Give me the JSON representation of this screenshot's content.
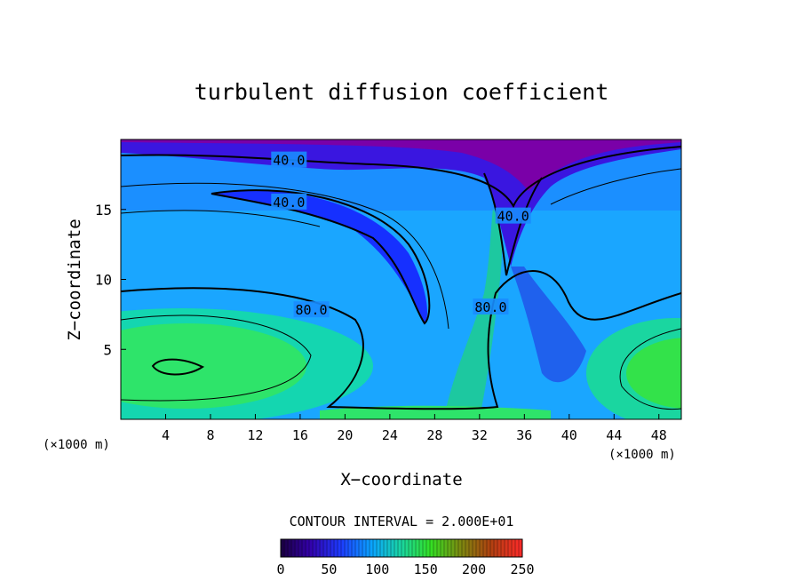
{
  "chart_data": {
    "type": "heatmap",
    "title": "turbulent diffusion coefficient",
    "xlabel": "X−coordinate",
    "ylabel": "Z−coordinate",
    "x_unit": "(×1000 m)",
    "z_unit": "(×1000 m)",
    "xlim": [
      0,
      50
    ],
    "ylim": [
      0,
      20
    ],
    "x_ticks": [
      "4",
      "8",
      "12",
      "16",
      "20",
      "24",
      "28",
      "32",
      "36",
      "40",
      "44",
      "48"
    ],
    "y_ticks": [
      "5",
      "10",
      "15"
    ],
    "contour_interval_text": "CONTOUR INTERVAL = 2.000E+01",
    "contour_labels": [
      {
        "text": "40.0",
        "x": 15,
        "z": 18.5
      },
      {
        "text": "40.0",
        "x": 15,
        "z": 15.5
      },
      {
        "text": "40.0",
        "x": 35,
        "z": 14.5
      },
      {
        "text": "80.0",
        "x": 17,
        "z": 7.8
      },
      {
        "text": "80.0",
        "x": 33,
        "z": 8.0
      }
    ],
    "colorbar": {
      "range": [
        0,
        250
      ],
      "ticks": [
        "0",
        "50",
        "100",
        "150",
        "200",
        "250"
      ]
    },
    "local_maxima": [
      {
        "x": 5.5,
        "z": 3.7,
        "approx_value": 120
      },
      {
        "x": 49,
        "z": 3,
        "approx_value": 120
      }
    ]
  },
  "colors": {
    "background": "#ffffff",
    "min": "#7a00a8",
    "low": "#1a1aff",
    "mid": "#1aa0ff",
    "high": "#22ee44"
  }
}
